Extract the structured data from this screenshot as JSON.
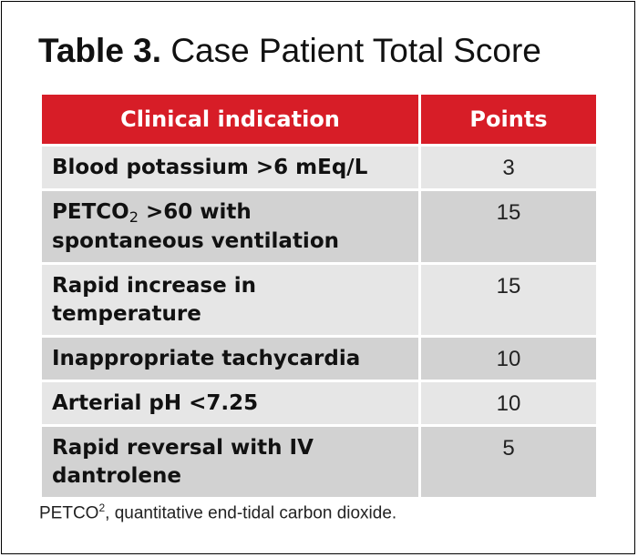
{
  "title": {
    "label": "Table 3.",
    "text": "Case Patient Total Score"
  },
  "table": {
    "headers": [
      "Clinical indication",
      "Points"
    ],
    "rows": [
      {
        "indication": "Blood potassium >6 mEq/L",
        "points": "3"
      },
      {
        "indication_prefix": "PETCO",
        "indication_sub": "2",
        "indication_suffix": " >60 with spontaneous ventilation",
        "points": "15"
      },
      {
        "indication": "Rapid increase in temperature",
        "points": "15"
      },
      {
        "indication": "Inappropriate tachycardia",
        "points": "10"
      },
      {
        "indication": "Arterial pH <7.25",
        "points": "10"
      },
      {
        "indication": "Rapid reversal with IV dantrolene",
        "points": "5"
      }
    ]
  },
  "footnote": {
    "term": "PETCO",
    "sup": "2",
    "text": ", quantitative end-tidal carbon dioxide."
  },
  "colors": {
    "header_red": "#d71d27",
    "row_light": "#e6e6e6",
    "row_dark": "#d2d2d2"
  }
}
